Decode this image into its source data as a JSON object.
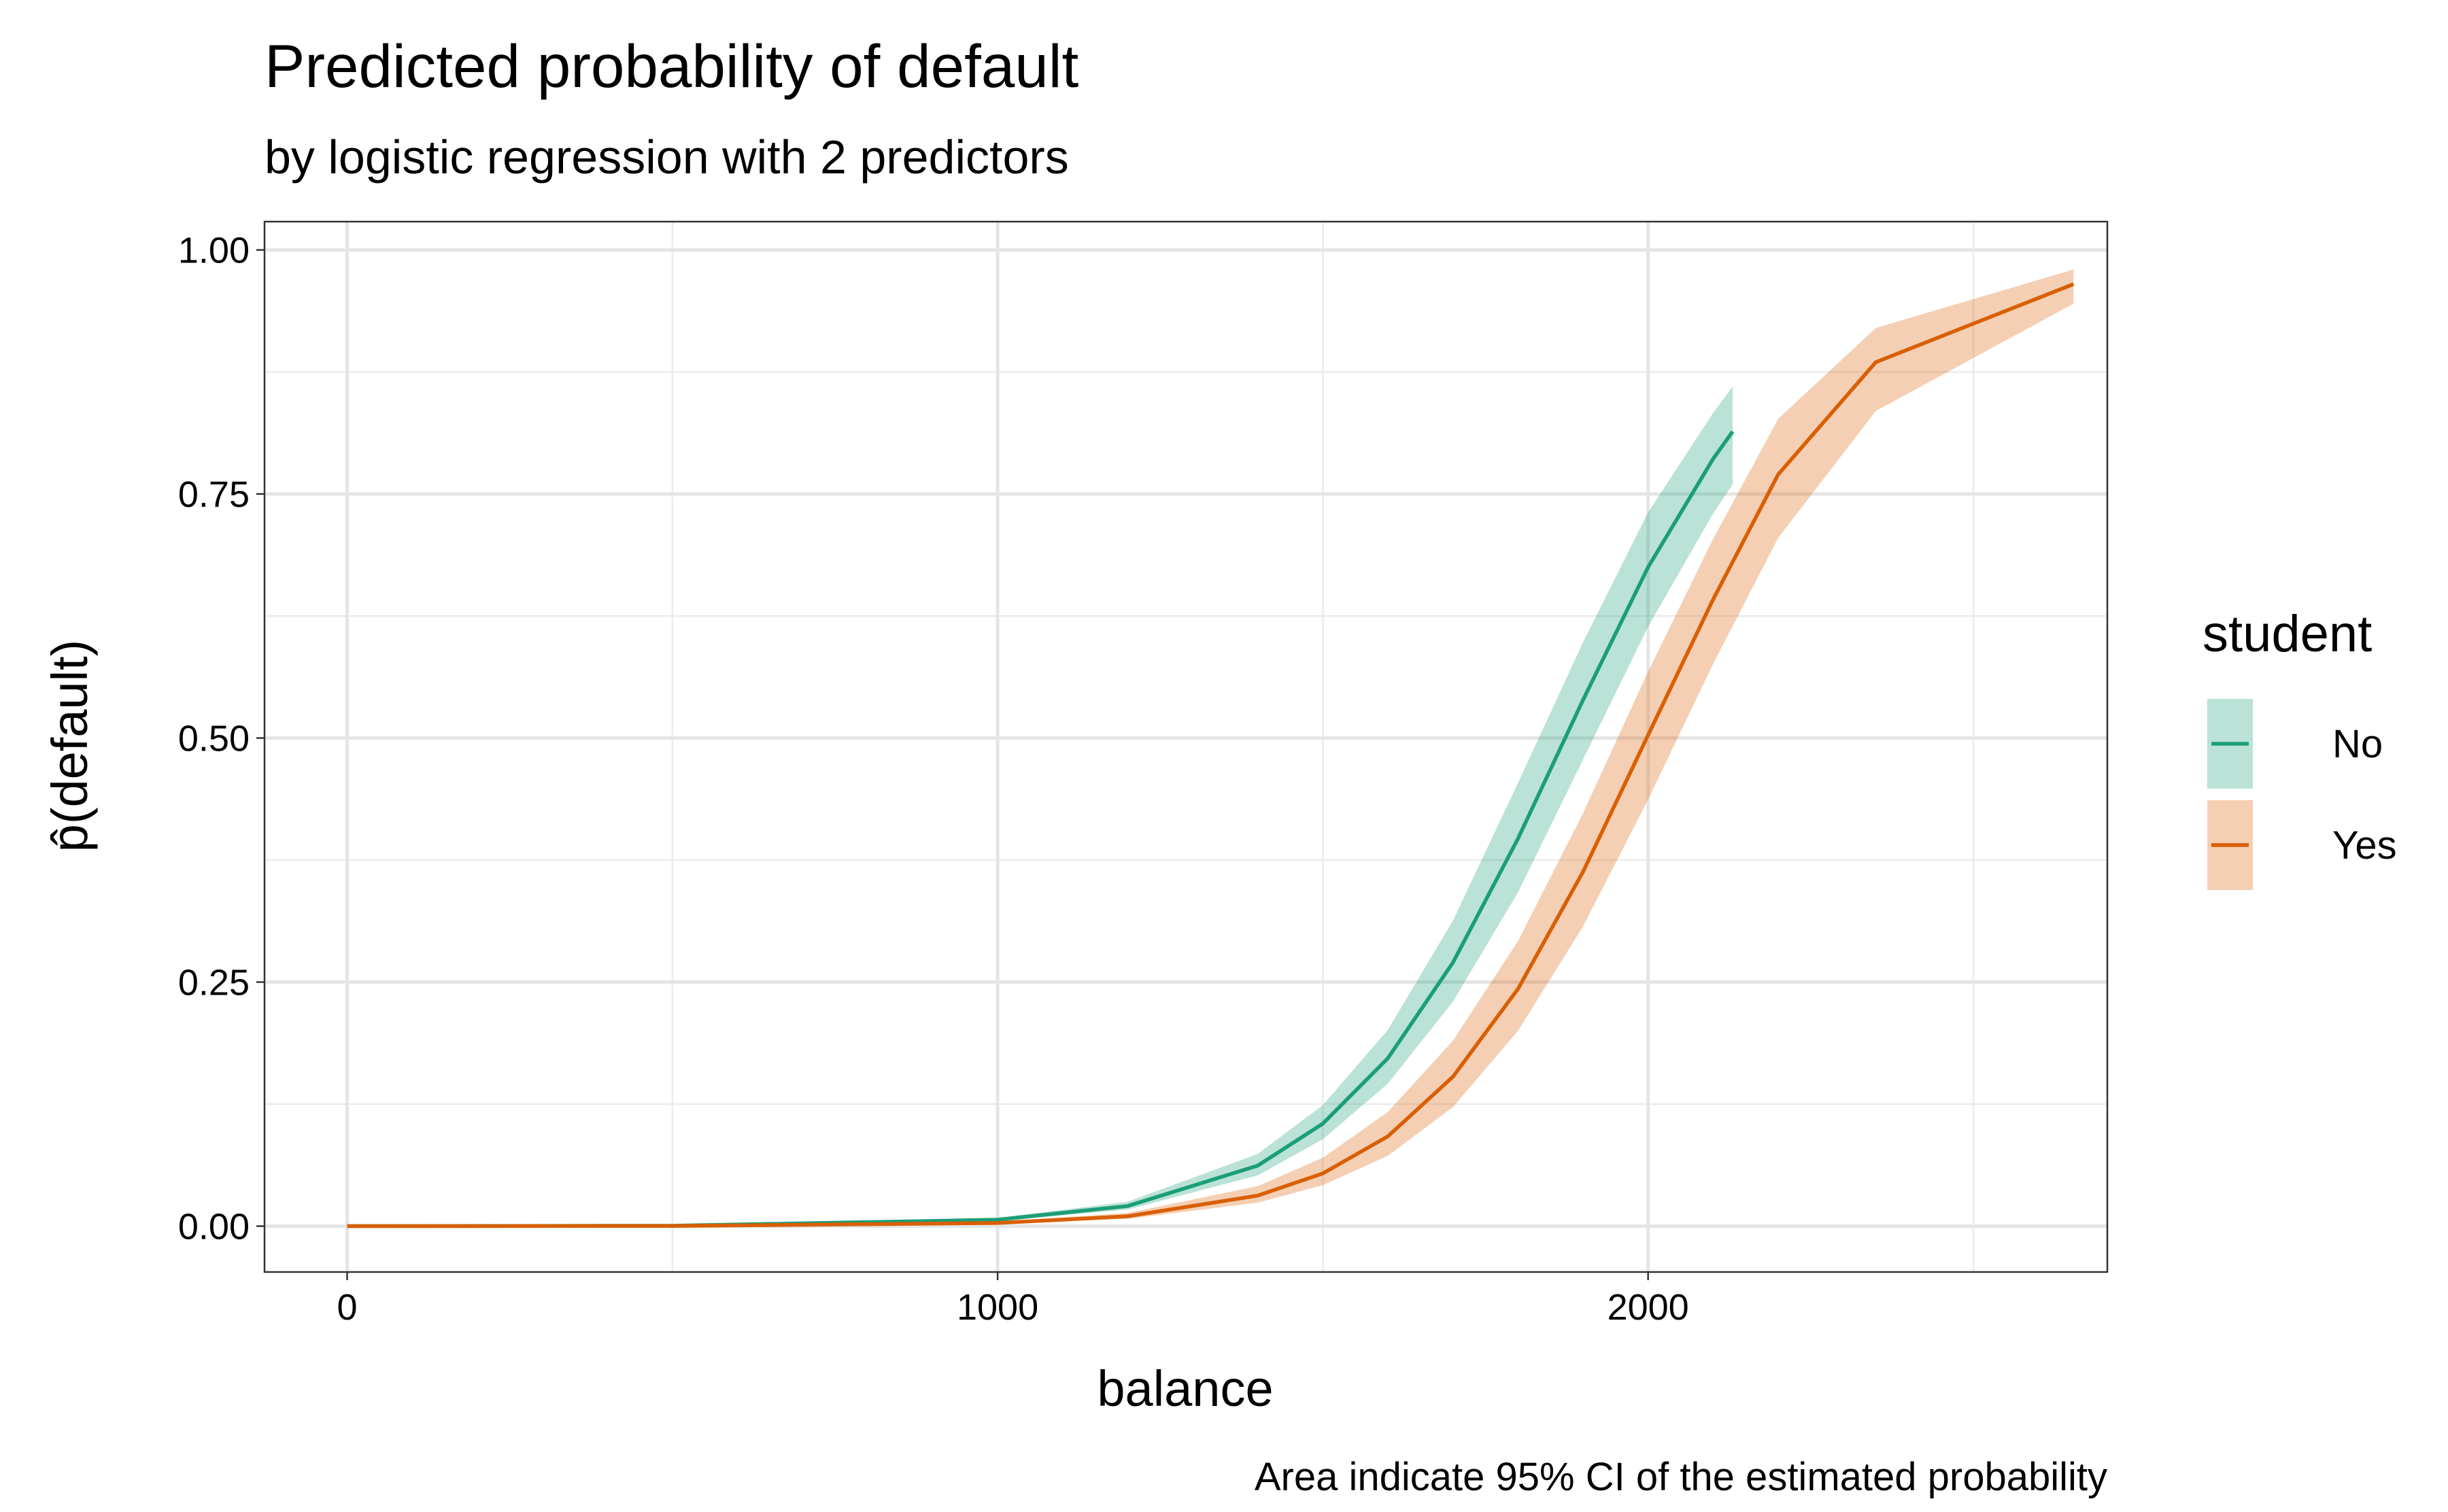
{
  "chart_data": {
    "type": "line",
    "title": "Predicted probability of default",
    "subtitle": "by logistic regression with 2 predictors",
    "x_label": "balance",
    "y_label": "p̂(default)",
    "caption": "Area indicate 95% CI of the estimated probability",
    "legend_title": "student",
    "xlim": [
      -127,
      2706
    ],
    "ylim": [
      -0.047,
      1.029
    ],
    "xticks": [
      0,
      1000,
      2000
    ],
    "yticks": [
      {
        "value": 0,
        "label": "0.00"
      },
      {
        "value": 0.25,
        "label": "0.25"
      },
      {
        "value": 0.5,
        "label": "0.50"
      },
      {
        "value": 0.75,
        "label": "0.75"
      },
      {
        "value": 1,
        "label": "1.00"
      }
    ],
    "grid": true,
    "minor_grid": true,
    "legend": "right",
    "series": [
      {
        "name": "No",
        "color": "#1b9e77",
        "x": [
          0,
          500,
          1000,
          1200,
          1400,
          1500,
          1600,
          1700,
          1800,
          1900,
          2000,
          2100,
          2130
        ],
        "values": [
          0,
          0.0004,
          0.0066,
          0.0206,
          0.062,
          0.105,
          0.172,
          0.27,
          0.397,
          0.539,
          0.675,
          0.786,
          0.814
        ],
        "lower": [
          0,
          0.0003,
          0.0052,
          0.017,
          0.052,
          0.089,
          0.146,
          0.23,
          0.342,
          0.478,
          0.614,
          0.73,
          0.76
        ],
        "upper": [
          0,
          0.0006,
          0.0084,
          0.025,
          0.074,
          0.124,
          0.201,
          0.313,
          0.454,
          0.598,
          0.731,
          0.833,
          0.86
        ]
      },
      {
        "name": "Yes",
        "color": "#d95f02",
        "x": [
          0,
          500,
          1000,
          1200,
          1400,
          1500,
          1600,
          1700,
          1800,
          1900,
          2000,
          2100,
          2200,
          2350,
          2654
        ],
        "values": [
          0,
          0.0002,
          0.0032,
          0.0101,
          0.0313,
          0.054,
          0.092,
          0.153,
          0.243,
          0.363,
          0.503,
          0.642,
          0.77,
          0.885,
          0.965
        ],
        "lower": [
          0,
          0.0001,
          0.0023,
          0.0075,
          0.024,
          0.042,
          0.072,
          0.122,
          0.2,
          0.307,
          0.437,
          0.576,
          0.705,
          0.835,
          0.945
        ],
        "upper": [
          0,
          0.0004,
          0.0045,
          0.0135,
          0.041,
          0.07,
          0.117,
          0.19,
          0.292,
          0.423,
          0.568,
          0.704,
          0.827,
          0.92,
          0.98
        ]
      }
    ]
  }
}
